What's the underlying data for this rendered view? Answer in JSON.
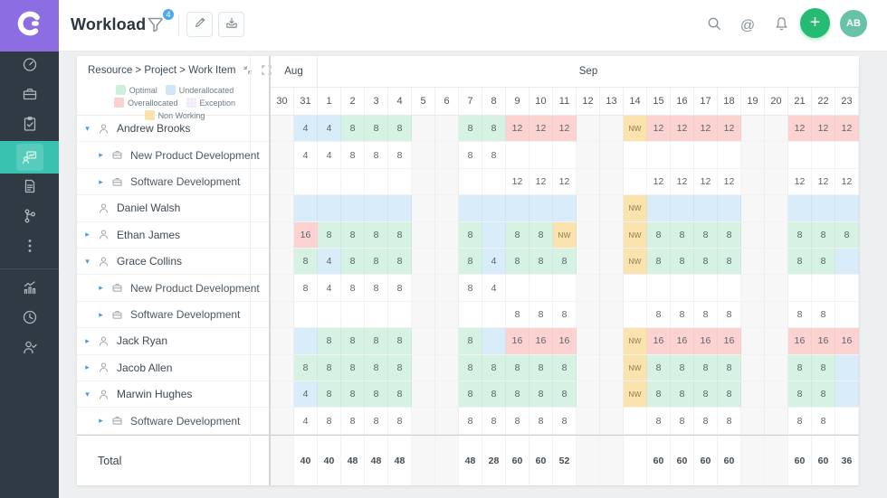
{
  "topbar": {
    "title": "Workload",
    "filter_badge": "4",
    "avatar_initials": "AB",
    "colors": {
      "logo_bg": "#8d6ee2",
      "badge": "#4aa7f5",
      "plus": "#25bb72",
      "avatar": "#68c2a8",
      "sidebar": "#2f3a44",
      "active_item": "#38c2b0"
    }
  },
  "sidebar": {
    "items": [
      {
        "name": "dashboard"
      },
      {
        "name": "projects"
      },
      {
        "name": "tasks"
      },
      {
        "name": "workload",
        "active": true
      },
      {
        "name": "documents"
      },
      {
        "name": "branches"
      },
      {
        "name": "more"
      },
      {
        "name": "reports"
      },
      {
        "name": "time-log"
      },
      {
        "name": "resources"
      }
    ]
  },
  "panel": {
    "hierarchy_label": "Resource > Project > Work Item",
    "legend": [
      {
        "key": "optimal",
        "label": "Optimal"
      },
      {
        "key": "under",
        "label": "Underallocated"
      },
      {
        "key": "over",
        "label": "Overallocated"
      },
      {
        "key": "exception",
        "label": "Exception"
      },
      {
        "key": "nonworking",
        "label": "Non Working"
      }
    ],
    "cell_colors": {
      "optimal": "#d5f2e2",
      "underallocated": "#d8ecfa",
      "overallocated": "#fcd3d0",
      "non_working": "#fbe3ad",
      "weekend": "#f7f7f8"
    },
    "months": [
      {
        "label": "Aug",
        "span": 2
      },
      {
        "label": "Sep",
        "span": 23
      }
    ],
    "days": [
      {
        "label": "30",
        "weekend": true
      },
      {
        "label": "31"
      },
      {
        "label": "1"
      },
      {
        "label": "2"
      },
      {
        "label": "3"
      },
      {
        "label": "4"
      },
      {
        "label": "5",
        "weekend": true
      },
      {
        "label": "6",
        "weekend": true
      },
      {
        "label": "7"
      },
      {
        "label": "8"
      },
      {
        "label": "9"
      },
      {
        "label": "10"
      },
      {
        "label": "11"
      },
      {
        "label": "12",
        "weekend": true
      },
      {
        "label": "13",
        "weekend": true
      },
      {
        "label": "14"
      },
      {
        "label": "15"
      },
      {
        "label": "16"
      },
      {
        "label": "17"
      },
      {
        "label": "18"
      },
      {
        "label": "19",
        "weekend": true
      },
      {
        "label": "20",
        "weekend": true
      },
      {
        "label": "21"
      },
      {
        "label": "22"
      },
      {
        "label": "23"
      }
    ],
    "rows": [
      {
        "type": "person",
        "name": "Andrew Brooks",
        "expand": "down",
        "cells": [
          [
            1,
            "4",
            "b"
          ],
          [
            2,
            "4",
            "b"
          ],
          [
            3,
            "8",
            "g"
          ],
          [
            4,
            "8",
            "g"
          ],
          [
            5,
            "8",
            "g"
          ],
          [
            8,
            "8",
            "g"
          ],
          [
            9,
            "8",
            "g"
          ],
          [
            10,
            "12",
            "r"
          ],
          [
            11,
            "12",
            "r"
          ],
          [
            12,
            "12",
            "r"
          ],
          [
            15,
            "NW",
            "nw"
          ],
          [
            16,
            "12",
            "r"
          ],
          [
            17,
            "12",
            "r"
          ],
          [
            18,
            "12",
            "r"
          ],
          [
            19,
            "12",
            "r"
          ],
          [
            22,
            "12",
            "r"
          ],
          [
            23,
            "12",
            "r"
          ],
          [
            24,
            "12",
            "r"
          ]
        ]
      },
      {
        "type": "project",
        "name": "New Product Development",
        "expand": "right",
        "cells": [
          [
            1,
            "4",
            "w"
          ],
          [
            2,
            "4",
            "w"
          ],
          [
            3,
            "8",
            "w"
          ],
          [
            4,
            "8",
            "w"
          ],
          [
            5,
            "8",
            "w"
          ],
          [
            8,
            "8",
            "w"
          ],
          [
            9,
            "8",
            "w"
          ]
        ]
      },
      {
        "type": "project",
        "name": "Software Development",
        "expand": "right",
        "cells": [
          [
            10,
            "12",
            "w"
          ],
          [
            11,
            "12",
            "w"
          ],
          [
            12,
            "12",
            "w"
          ],
          [
            16,
            "12",
            "w"
          ],
          [
            17,
            "12",
            "w"
          ],
          [
            18,
            "12",
            "w"
          ],
          [
            19,
            "12",
            "w"
          ],
          [
            22,
            "12",
            "w"
          ],
          [
            23,
            "12",
            "w"
          ],
          [
            24,
            "12",
            "w"
          ]
        ]
      },
      {
        "type": "person",
        "name": "Daniel Walsh",
        "expand": "none",
        "cells": [
          [
            1,
            "",
            "e"
          ],
          [
            2,
            "",
            "e"
          ],
          [
            3,
            "",
            "e"
          ],
          [
            4,
            "",
            "e"
          ],
          [
            5,
            "",
            "e"
          ],
          [
            8,
            "",
            "e"
          ],
          [
            9,
            "",
            "e"
          ],
          [
            10,
            "",
            "e"
          ],
          [
            11,
            "",
            "e"
          ],
          [
            12,
            "",
            "e"
          ],
          [
            15,
            "NW",
            "nw"
          ],
          [
            16,
            "",
            "e"
          ],
          [
            17,
            "",
            "e"
          ],
          [
            18,
            "",
            "e"
          ],
          [
            19,
            "",
            "e"
          ],
          [
            22,
            "",
            "e"
          ],
          [
            23,
            "",
            "e"
          ],
          [
            24,
            "",
            "e"
          ]
        ]
      },
      {
        "type": "person",
        "name": "Ethan James",
        "expand": "right",
        "cells": [
          [
            1,
            "16",
            "r"
          ],
          [
            2,
            "8",
            "g"
          ],
          [
            3,
            "8",
            "g"
          ],
          [
            4,
            "8",
            "g"
          ],
          [
            5,
            "8",
            "g"
          ],
          [
            8,
            "8",
            "g"
          ],
          [
            9,
            "",
            "e"
          ],
          [
            10,
            "8",
            "g"
          ],
          [
            11,
            "8",
            "g"
          ],
          [
            12,
            "NW",
            "nw"
          ],
          [
            15,
            "NW",
            "nw"
          ],
          [
            16,
            "8",
            "g"
          ],
          [
            17,
            "8",
            "g"
          ],
          [
            18,
            "8",
            "g"
          ],
          [
            19,
            "8",
            "g"
          ],
          [
            22,
            "8",
            "g"
          ],
          [
            23,
            "8",
            "g"
          ],
          [
            24,
            "8",
            "g"
          ]
        ]
      },
      {
        "type": "person",
        "name": "Grace Collins",
        "expand": "down",
        "cells": [
          [
            1,
            "8",
            "g"
          ],
          [
            2,
            "4",
            "b"
          ],
          [
            3,
            "8",
            "g"
          ],
          [
            4,
            "8",
            "g"
          ],
          [
            5,
            "8",
            "g"
          ],
          [
            8,
            "8",
            "g"
          ],
          [
            9,
            "4",
            "b"
          ],
          [
            10,
            "8",
            "g"
          ],
          [
            11,
            "8",
            "g"
          ],
          [
            12,
            "8",
            "g"
          ],
          [
            15,
            "NW",
            "nw"
          ],
          [
            16,
            "8",
            "g"
          ],
          [
            17,
            "8",
            "g"
          ],
          [
            18,
            "8",
            "g"
          ],
          [
            19,
            "8",
            "g"
          ],
          [
            22,
            "8",
            "g"
          ],
          [
            23,
            "8",
            "g"
          ],
          [
            24,
            "",
            "e"
          ]
        ]
      },
      {
        "type": "project",
        "name": "New Product Development",
        "expand": "right",
        "cells": [
          [
            1,
            "8",
            "w"
          ],
          [
            2,
            "4",
            "w"
          ],
          [
            3,
            "8",
            "w"
          ],
          [
            4,
            "8",
            "w"
          ],
          [
            5,
            "8",
            "w"
          ],
          [
            8,
            "8",
            "w"
          ],
          [
            9,
            "4",
            "w"
          ]
        ]
      },
      {
        "type": "project",
        "name": "Software Development",
        "expand": "right",
        "cells": [
          [
            10,
            "8",
            "w"
          ],
          [
            11,
            "8",
            "w"
          ],
          [
            12,
            "8",
            "w"
          ],
          [
            16,
            "8",
            "w"
          ],
          [
            17,
            "8",
            "w"
          ],
          [
            18,
            "8",
            "w"
          ],
          [
            19,
            "8",
            "w"
          ],
          [
            22,
            "8",
            "w"
          ],
          [
            23,
            "8",
            "w"
          ]
        ]
      },
      {
        "type": "person",
        "name": "Jack Ryan",
        "expand": "right",
        "cells": [
          [
            1,
            "",
            "e"
          ],
          [
            2,
            "8",
            "g"
          ],
          [
            3,
            "8",
            "g"
          ],
          [
            4,
            "8",
            "g"
          ],
          [
            5,
            "8",
            "g"
          ],
          [
            8,
            "8",
            "g"
          ],
          [
            9,
            "",
            "e"
          ],
          [
            10,
            "16",
            "r"
          ],
          [
            11,
            "16",
            "r"
          ],
          [
            12,
            "16",
            "r"
          ],
          [
            15,
            "NW",
            "nw"
          ],
          [
            16,
            "16",
            "r"
          ],
          [
            17,
            "16",
            "r"
          ],
          [
            18,
            "16",
            "r"
          ],
          [
            19,
            "16",
            "r"
          ],
          [
            22,
            "16",
            "r"
          ],
          [
            23,
            "16",
            "r"
          ],
          [
            24,
            "16",
            "r"
          ]
        ]
      },
      {
        "type": "person",
        "name": "Jacob Allen",
        "expand": "right",
        "cells": [
          [
            1,
            "8",
            "g"
          ],
          [
            2,
            "8",
            "g"
          ],
          [
            3,
            "8",
            "g"
          ],
          [
            4,
            "8",
            "g"
          ],
          [
            5,
            "8",
            "g"
          ],
          [
            8,
            "8",
            "g"
          ],
          [
            9,
            "8",
            "g"
          ],
          [
            10,
            "8",
            "g"
          ],
          [
            11,
            "8",
            "g"
          ],
          [
            12,
            "8",
            "g"
          ],
          [
            15,
            "NW",
            "nw"
          ],
          [
            16,
            "8",
            "g"
          ],
          [
            17,
            "8",
            "g"
          ],
          [
            18,
            "8",
            "g"
          ],
          [
            19,
            "8",
            "g"
          ],
          [
            22,
            "8",
            "g"
          ],
          [
            23,
            "8",
            "g"
          ],
          [
            24,
            "",
            "e"
          ]
        ]
      },
      {
        "type": "person",
        "name": "Marwin Hughes",
        "expand": "down",
        "cells": [
          [
            1,
            "4",
            "b"
          ],
          [
            2,
            "8",
            "g"
          ],
          [
            3,
            "8",
            "g"
          ],
          [
            4,
            "8",
            "g"
          ],
          [
            5,
            "8",
            "g"
          ],
          [
            8,
            "8",
            "g"
          ],
          [
            9,
            "8",
            "g"
          ],
          [
            10,
            "8",
            "g"
          ],
          [
            11,
            "8",
            "g"
          ],
          [
            12,
            "8",
            "g"
          ],
          [
            15,
            "NW",
            "nw"
          ],
          [
            16,
            "8",
            "g"
          ],
          [
            17,
            "8",
            "g"
          ],
          [
            18,
            "8",
            "g"
          ],
          [
            19,
            "8",
            "g"
          ],
          [
            22,
            "8",
            "g"
          ],
          [
            23,
            "8",
            "g"
          ],
          [
            24,
            "",
            "e"
          ]
        ]
      },
      {
        "type": "project",
        "name": "Software Development",
        "expand": "right",
        "cells": [
          [
            1,
            "4",
            "w"
          ],
          [
            2,
            "8",
            "w"
          ],
          [
            3,
            "8",
            "w"
          ],
          [
            4,
            "8",
            "w"
          ],
          [
            5,
            "8",
            "w"
          ],
          [
            8,
            "8",
            "w"
          ],
          [
            9,
            "8",
            "w"
          ],
          [
            10,
            "8",
            "w"
          ],
          [
            11,
            "8",
            "w"
          ],
          [
            12,
            "8",
            "w"
          ],
          [
            16,
            "8",
            "w"
          ],
          [
            17,
            "8",
            "w"
          ],
          [
            18,
            "8",
            "w"
          ],
          [
            19,
            "8",
            "w"
          ],
          [
            22,
            "8",
            "w"
          ],
          [
            23,
            "8",
            "w"
          ]
        ]
      }
    ],
    "total": {
      "label": "Total",
      "cells": [
        [
          1,
          "40"
        ],
        [
          2,
          "40"
        ],
        [
          3,
          "48"
        ],
        [
          4,
          "48"
        ],
        [
          5,
          "48"
        ],
        [
          8,
          "48"
        ],
        [
          9,
          "28"
        ],
        [
          10,
          "60"
        ],
        [
          11,
          "60"
        ],
        [
          12,
          "52"
        ],
        [
          16,
          "60"
        ],
        [
          17,
          "60"
        ],
        [
          18,
          "60"
        ],
        [
          19,
          "60"
        ],
        [
          22,
          "60"
        ],
        [
          23,
          "60"
        ],
        [
          24,
          "36"
        ]
      ]
    }
  }
}
